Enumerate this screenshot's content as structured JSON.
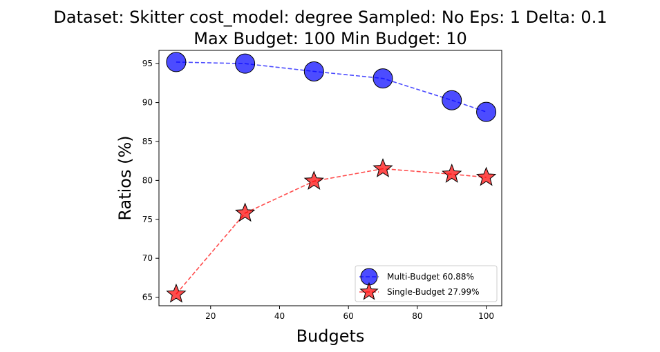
{
  "chart_data": {
    "type": "line",
    "title_line1": "Dataset: Skitter cost_model: degree Sampled: No Eps: 1 Delta: 0.1",
    "title_line2": "Max Budget: 100 Min Budget: 10",
    "xlabel": "Budgets",
    "ylabel": "Ratios (%)",
    "x": [
      10,
      30,
      50,
      70,
      90,
      100
    ],
    "xlim": [
      5,
      104.5
    ],
    "ylim": [
      63.9,
      96.7
    ],
    "xticks": [
      20,
      40,
      60,
      80,
      100
    ],
    "yticks": [
      65,
      70,
      75,
      80,
      85,
      90,
      95
    ],
    "grid": false,
    "legend_position": "lower-right",
    "series": [
      {
        "name": "Multi-Budget 60.88%",
        "values": [
          95.2,
          95.0,
          94.0,
          93.1,
          90.3,
          88.8
        ],
        "color": "#0000ff",
        "marker": "circle",
        "line_style": "dashed"
      },
      {
        "name": "Single-Budget 27.99%",
        "values": [
          65.4,
          75.8,
          79.9,
          81.5,
          80.8,
          80.4
        ],
        "color": "#ff0000",
        "marker": "star",
        "line_style": "dashed"
      }
    ]
  }
}
